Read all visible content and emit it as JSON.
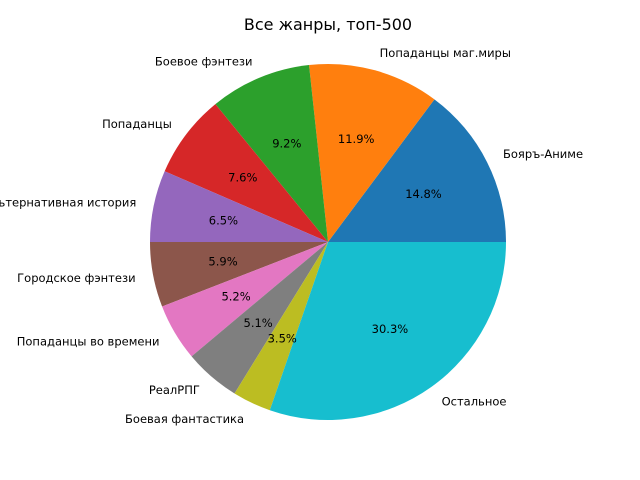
{
  "chart_data": {
    "type": "pie",
    "title": "Все жанры, топ-500",
    "start_angle_deg": 0,
    "direction": "counterclockwise",
    "slices": [
      {
        "label": "Бояръ-Аниме",
        "value": 14.8,
        "pct_text": "14.8%",
        "color": "#1f77b4"
      },
      {
        "label": "Попаданцы маг.миры",
        "value": 11.9,
        "pct_text": "11.9%",
        "color": "#ff7f0e"
      },
      {
        "label": "Боевое фэнтези",
        "value": 9.2,
        "pct_text": "9.2%",
        "color": "#2ca02c"
      },
      {
        "label": "Попаданцы",
        "value": 7.6,
        "pct_text": "7.6%",
        "color": "#d62728"
      },
      {
        "label": "Альтернативная история",
        "value": 6.5,
        "pct_text": "6.5%",
        "color": "#9467bd"
      },
      {
        "label": "Городское фэнтези",
        "value": 5.9,
        "pct_text": "5.9%",
        "color": "#8c564b"
      },
      {
        "label": "Попаданцы во времени",
        "value": 5.2,
        "pct_text": "5.2%",
        "color": "#e377c2"
      },
      {
        "label": "РеалРПГ",
        "value": 5.1,
        "pct_text": "5.1%",
        "color": "#7f7f7f"
      },
      {
        "label": "Боевая фантастика",
        "value": 3.5,
        "pct_text": "3.5%",
        "color": "#bcbd22"
      },
      {
        "label": "Остальное",
        "value": 30.3,
        "pct_text": "30.3%",
        "color": "#17becf"
      }
    ]
  }
}
